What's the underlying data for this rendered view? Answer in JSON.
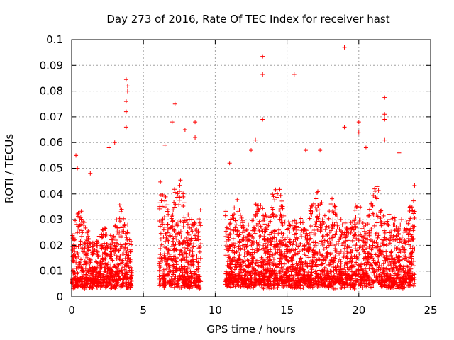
{
  "chart_data": {
    "type": "scatter",
    "title": "Day 273 of 2016, Rate Of TEC Index for receiver hast",
    "xlabel": "GPS time / hours",
    "ylabel": "ROTI / TECUs",
    "xlim": [
      0,
      25
    ],
    "ylim": [
      0,
      0.1
    ],
    "xticks": [
      0,
      5,
      10,
      15,
      20,
      25
    ],
    "xtick_labels": [
      "0",
      "5",
      "10",
      "15",
      "20",
      "25"
    ],
    "yticks": [
      0,
      0.01,
      0.02,
      0.03,
      0.04,
      0.05,
      0.06,
      0.07,
      0.08,
      0.09,
      0.1
    ],
    "ytick_labels": [
      "0",
      "0.01",
      "0.02",
      "0.03",
      "0.04",
      "0.05",
      "0.06",
      "0.07",
      "0.08",
      "0.09",
      "0.1"
    ],
    "grid": true,
    "marker": "+",
    "color": "#ff0000",
    "series": [
      {
        "name": "ROTI",
        "segments": [
          {
            "start": 0.0,
            "end": 4.2,
            "typical_max": 0.03
          },
          {
            "start": 6.1,
            "end": 9.0,
            "typical_max": 0.045
          },
          {
            "start": 10.7,
            "end": 23.9,
            "typical_max": 0.04
          }
        ],
        "peaks": [
          {
            "x": 0.3,
            "y": 0.055
          },
          {
            "x": 0.4,
            "y": 0.05
          },
          {
            "x": 1.3,
            "y": 0.048
          },
          {
            "x": 2.6,
            "y": 0.058
          },
          {
            "x": 3.0,
            "y": 0.06
          },
          {
            "x": 3.8,
            "y": 0.066
          },
          {
            "x": 3.8,
            "y": 0.072
          },
          {
            "x": 3.8,
            "y": 0.076
          },
          {
            "x": 3.9,
            "y": 0.08
          },
          {
            "x": 3.9,
            "y": 0.082
          },
          {
            "x": 3.8,
            "y": 0.0845
          },
          {
            "x": 6.5,
            "y": 0.059
          },
          {
            "x": 7.0,
            "y": 0.068
          },
          {
            "x": 7.2,
            "y": 0.075
          },
          {
            "x": 7.9,
            "y": 0.065
          },
          {
            "x": 8.6,
            "y": 0.068
          },
          {
            "x": 8.6,
            "y": 0.062
          },
          {
            "x": 11.0,
            "y": 0.052
          },
          {
            "x": 12.5,
            "y": 0.057
          },
          {
            "x": 12.8,
            "y": 0.061
          },
          {
            "x": 13.3,
            "y": 0.0935
          },
          {
            "x": 13.3,
            "y": 0.0865
          },
          {
            "x": 13.3,
            "y": 0.069
          },
          {
            "x": 15.5,
            "y": 0.0865
          },
          {
            "x": 16.3,
            "y": 0.057
          },
          {
            "x": 17.3,
            "y": 0.057
          },
          {
            "x": 19.0,
            "y": 0.097
          },
          {
            "x": 19.0,
            "y": 0.066
          },
          {
            "x": 20.0,
            "y": 0.068
          },
          {
            "x": 20.0,
            "y": 0.064
          },
          {
            "x": 20.5,
            "y": 0.058
          },
          {
            "x": 21.8,
            "y": 0.0775
          },
          {
            "x": 21.8,
            "y": 0.071
          },
          {
            "x": 21.8,
            "y": 0.069
          },
          {
            "x": 21.8,
            "y": 0.061
          },
          {
            "x": 22.8,
            "y": 0.056
          }
        ]
      }
    ]
  }
}
